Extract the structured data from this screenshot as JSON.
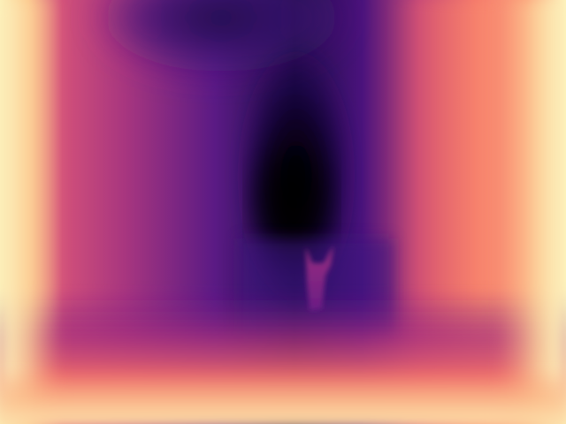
{
  "image": {
    "subject": "depth-map-corridor",
    "colormap": "magma",
    "colors": {
      "near": "#fcfdbf",
      "mid_near": "#fb8761",
      "mid": "#b73779",
      "mid_far": "#51127c",
      "far": "#000004"
    }
  }
}
